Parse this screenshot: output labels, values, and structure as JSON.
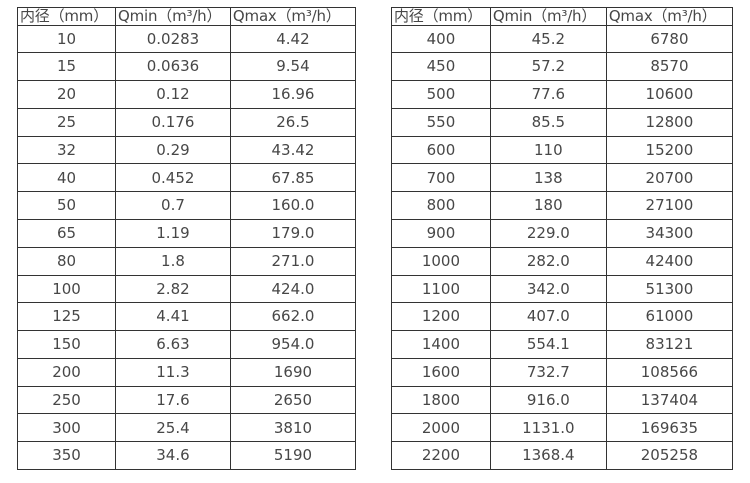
{
  "colors": {
    "background": "#ffffff",
    "border": "#333333",
    "text": "#474747"
  },
  "tables": [
    {
      "name": "small-diameter-flow-table",
      "headers": [
        "内径（mm）",
        "Qmin（m³/h）",
        "Qmax（m³/h）"
      ],
      "rows": [
        [
          "10",
          "0.0283",
          "4.42"
        ],
        [
          "15",
          "0.0636",
          "9.54"
        ],
        [
          "20",
          "0.12",
          "16.96"
        ],
        [
          "25",
          "0.176",
          "26.5"
        ],
        [
          "32",
          "0.29",
          "43.42"
        ],
        [
          "40",
          "0.452",
          "67.85"
        ],
        [
          "50",
          "0.7",
          "160.0"
        ],
        [
          "65",
          "1.19",
          "179.0"
        ],
        [
          "80",
          "1.8",
          "271.0"
        ],
        [
          "100",
          "2.82",
          "424.0"
        ],
        [
          "125",
          "4.41",
          "662.0"
        ],
        [
          "150",
          "6.63",
          "954.0"
        ],
        [
          "200",
          "11.3",
          "1690"
        ],
        [
          "250",
          "17.6",
          "2650"
        ],
        [
          "300",
          "25.4",
          "3810"
        ],
        [
          "350",
          "34.6",
          "5190"
        ]
      ]
    },
    {
      "name": "large-diameter-flow-table",
      "headers": [
        "内径（mm）",
        "Qmin（m³/h）",
        "Qmax（m³/h）"
      ],
      "rows": [
        [
          "400",
          "45.2",
          "6780"
        ],
        [
          "450",
          "57.2",
          "8570"
        ],
        [
          "500",
          "77.6",
          "10600"
        ],
        [
          "550",
          "85.5",
          "12800"
        ],
        [
          "600",
          "110",
          "15200"
        ],
        [
          "700",
          "138",
          "20700"
        ],
        [
          "800",
          "180",
          "27100"
        ],
        [
          "900",
          "229.0",
          "34300"
        ],
        [
          "1000",
          "282.0",
          "42400"
        ],
        [
          "1100",
          "342.0",
          "51300"
        ],
        [
          "1200",
          "407.0",
          "61000"
        ],
        [
          "1400",
          "554.1",
          "83121"
        ],
        [
          "1600",
          "732.7",
          "108566"
        ],
        [
          "1800",
          "916.0",
          "137404"
        ],
        [
          "2000",
          "1131.0",
          "169635"
        ],
        [
          "2200",
          "1368.4",
          "205258"
        ]
      ]
    }
  ]
}
